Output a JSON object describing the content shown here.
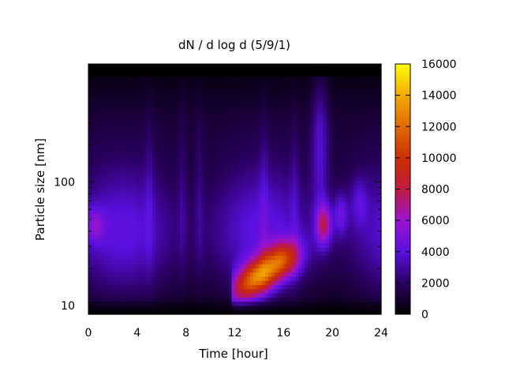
{
  "chart_data": {
    "type": "heatmap",
    "title": "dN / d log d (5/9/1)",
    "xlabel": "Time [hour]",
    "ylabel": "Particle size [nm]",
    "x_range": [
      0,
      24
    ],
    "y_range_nm": [
      8.5,
      900
    ],
    "y_scale": "log",
    "x_ticks": [
      "0",
      "4",
      "8",
      "12",
      "16",
      "20",
      "24"
    ],
    "x_tick_values": [
      0,
      4,
      8,
      12,
      16,
      20,
      24
    ],
    "y_ticks": [
      "10",
      "100"
    ],
    "y_tick_values": [
      10,
      100
    ],
    "colorbar": {
      "range": [
        0,
        16000
      ],
      "ticks": [
        "0",
        "2000",
        "4000",
        "6000",
        "8000",
        "10000",
        "12000",
        "14000",
        "16000"
      ],
      "tick_values": [
        0,
        2000,
        4000,
        6000,
        8000,
        10000,
        12000,
        14000,
        16000
      ],
      "palette": "black-purple-red-orange-yellow"
    },
    "features": [
      {
        "desc": "nucleation/growth event",
        "time_start_h": 11.8,
        "time_end_h": 17.5,
        "peak_time_h": 14,
        "peak_size_nm": 20,
        "peak_value": 13000
      },
      {
        "desc": "secondary band",
        "time_h": 19.3,
        "size_nm": 45,
        "value": 8000
      },
      {
        "desc": "early mode",
        "time_h": 0.5,
        "size_nm": 45,
        "value": 6500
      }
    ]
  }
}
